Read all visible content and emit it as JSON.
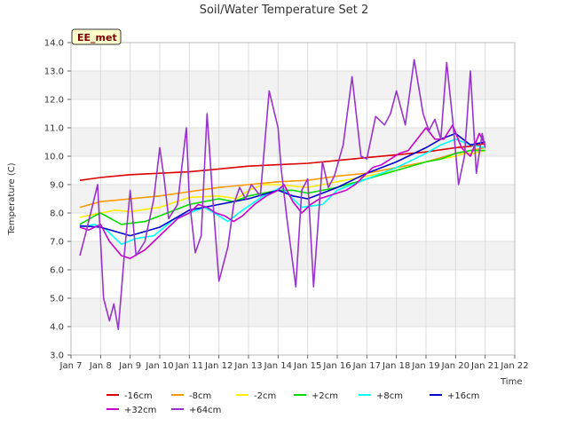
{
  "chart_data": {
    "type": "line",
    "title": "Soil/Water Temperature Set 2",
    "xlabel": "Time",
    "ylabel": "Temperature (C)",
    "station_badge": "EE_met",
    "xlim": [
      7,
      22
    ],
    "ylim": [
      3.0,
      14.0
    ],
    "yticks": [
      "3.0",
      "4.0",
      "5.0",
      "6.0",
      "7.0",
      "8.0",
      "9.0",
      "10.0",
      "11.0",
      "12.0",
      "13.0",
      "14.0"
    ],
    "xticks": [
      "Jan 7",
      "Jan 8",
      "Jan 9",
      "Jan 10",
      "Jan 11",
      "Jan 12",
      "Jan 13",
      "Jan 14",
      "Jan 15",
      "Jan 16",
      "Jan 17",
      "Jan 18",
      "Jan 19",
      "Jan 20",
      "Jan 21",
      "Jan 22"
    ],
    "x_units": "day of January",
    "grid": true,
    "legend_position": "bottom",
    "series": [
      {
        "name": "-16cm",
        "color": "#dd0000",
        "x": [
          7.3,
          8,
          9,
          10,
          11,
          12,
          13,
          14,
          15,
          16,
          17,
          18,
          19,
          20,
          20.5,
          21
        ],
        "y": [
          9.15,
          9.25,
          9.35,
          9.4,
          9.45,
          9.55,
          9.65,
          9.7,
          9.75,
          9.85,
          9.95,
          10.05,
          10.15,
          10.3,
          10.35,
          10.45
        ]
      },
      {
        "name": "-8cm",
        "color": "#ff9900",
        "x": [
          7.3,
          8,
          9,
          10,
          11,
          12,
          13,
          14,
          15,
          16,
          17,
          18,
          19,
          20,
          20.5,
          21
        ],
        "y": [
          8.2,
          8.4,
          8.5,
          8.6,
          8.75,
          8.9,
          9.0,
          9.1,
          9.15,
          9.3,
          9.4,
          9.6,
          9.8,
          10.1,
          10.2,
          10.3
        ]
      },
      {
        "name": "-2cm",
        "color": "#ffee00",
        "x": [
          7.3,
          8,
          8.5,
          9,
          10,
          11,
          12,
          12.6,
          13,
          13.5,
          14,
          15,
          15.5,
          16,
          17,
          18,
          19,
          19.5,
          20,
          20.3,
          20.6,
          21
        ],
        "y": [
          7.85,
          8.0,
          8.1,
          8.05,
          8.2,
          8.55,
          8.6,
          8.5,
          8.8,
          9.0,
          9.0,
          8.9,
          9.0,
          9.1,
          9.3,
          9.5,
          9.8,
          9.9,
          10.0,
          10.1,
          10.1,
          10.2
        ]
      },
      {
        "name": "+2cm",
        "color": "#00dd00",
        "x": [
          7.3,
          7.8,
          8,
          8.7,
          9.5,
          10,
          11,
          11.5,
          12,
          12.5,
          13,
          13.5,
          14,
          14.5,
          15,
          16,
          17,
          18,
          19,
          19.5,
          20,
          20.5,
          21
        ],
        "y": [
          7.6,
          7.9,
          8.0,
          7.6,
          7.7,
          7.9,
          8.3,
          8.4,
          8.5,
          8.4,
          8.6,
          8.7,
          8.8,
          8.8,
          8.7,
          8.9,
          9.2,
          9.5,
          9.8,
          9.9,
          10.1,
          10.2,
          10.2
        ]
      },
      {
        "name": "+8cm",
        "color": "#00ffff",
        "x": [
          7.3,
          7.8,
          8.2,
          8.7,
          9.2,
          9.8,
          10.5,
          11,
          11.5,
          12,
          12.3,
          12.8,
          13.5,
          14.1,
          14.4,
          14.8,
          15.5,
          16,
          17,
          18,
          19,
          19.5,
          20,
          20.5,
          21
        ],
        "y": [
          7.5,
          7.6,
          7.4,
          6.9,
          7.1,
          7.2,
          7.8,
          8.0,
          8.2,
          7.9,
          7.7,
          8.1,
          8.6,
          8.9,
          8.6,
          8.2,
          8.3,
          8.8,
          9.2,
          9.6,
          10.1,
          10.4,
          10.6,
          10.4,
          10.3
        ]
      },
      {
        "name": "+16cm",
        "color": "#0000cc",
        "x": [
          7.3,
          8,
          9,
          10,
          11,
          12,
          13,
          14,
          14.5,
          15,
          16,
          17,
          18,
          19,
          19.5,
          20,
          20.5,
          21
        ],
        "y": [
          7.55,
          7.5,
          7.2,
          7.5,
          8.1,
          8.3,
          8.5,
          8.8,
          8.6,
          8.5,
          8.9,
          9.4,
          9.8,
          10.3,
          10.6,
          10.8,
          10.4,
          10.5
        ]
      },
      {
        "name": "+32cm",
        "color": "#cc00cc",
        "x": [
          7.3,
          7.6,
          8,
          8.3,
          8.7,
          9,
          9.5,
          9.8,
          10.2,
          10.6,
          11,
          11.3,
          11.6,
          11.9,
          12.2,
          12.5,
          12.8,
          13.2,
          13.6,
          14,
          14.2,
          14.5,
          14.8,
          15.1,
          15.4,
          15.7,
          16,
          16.3,
          16.6,
          16.9,
          17.2,
          17.5,
          17.8,
          18.1,
          18.4,
          18.7,
          19,
          19.3,
          19.6,
          19.9,
          20.2,
          20.5,
          20.8,
          21
        ],
        "y": [
          7.5,
          7.4,
          7.6,
          7.0,
          6.5,
          6.4,
          6.7,
          7.0,
          7.4,
          7.8,
          8.0,
          8.3,
          8.2,
          8.0,
          7.9,
          7.7,
          7.9,
          8.3,
          8.6,
          8.8,
          9.0,
          8.4,
          8.0,
          8.3,
          8.5,
          8.6,
          8.7,
          8.8,
          9.0,
          9.3,
          9.6,
          9.7,
          9.9,
          10.1,
          10.2,
          10.6,
          11.0,
          10.6,
          10.6,
          11.1,
          10.3,
          10.0,
          10.8,
          10.4
        ]
      },
      {
        "name": "+64cm",
        "color": "#9933cc",
        "x": [
          7.3,
          7.5,
          7.9,
          8.1,
          8.3,
          8.45,
          8.6,
          8.8,
          9.0,
          9.2,
          9.5,
          9.8,
          10.0,
          10.15,
          10.3,
          10.6,
          10.9,
          11.0,
          11.2,
          11.4,
          11.6,
          11.8,
          12.0,
          12.3,
          12.5,
          12.7,
          12.9,
          13.1,
          13.4,
          13.7,
          14.0,
          14.1,
          14.3,
          14.6,
          14.8,
          15.0,
          15.2,
          15.5,
          15.7,
          15.9,
          16.2,
          16.5,
          16.8,
          17.0,
          17.3,
          17.6,
          17.8,
          18.0,
          18.3,
          18.6,
          18.9,
          19.1,
          19.3,
          19.5,
          19.7,
          19.9,
          20.1,
          20.3,
          20.5,
          20.7,
          20.9,
          21.0
        ],
        "y": [
          6.5,
          7.3,
          9.0,
          5.0,
          4.2,
          4.8,
          3.9,
          6.5,
          8.8,
          6.5,
          7.0,
          8.5,
          10.3,
          9.2,
          7.8,
          8.3,
          11.0,
          8.5,
          6.6,
          7.2,
          11.5,
          8.4,
          5.6,
          6.8,
          8.3,
          8.9,
          8.5,
          9.0,
          8.6,
          12.3,
          11.0,
          9.6,
          7.8,
          5.4,
          8.8,
          9.2,
          5.4,
          9.8,
          8.9,
          9.3,
          10.4,
          12.8,
          10.0,
          9.9,
          11.4,
          11.1,
          11.5,
          12.3,
          11.1,
          13.4,
          11.5,
          10.9,
          11.3,
          10.6,
          13.3,
          11.3,
          9.0,
          10.0,
          13.0,
          9.4,
          10.8,
          10.3
        ]
      }
    ]
  }
}
